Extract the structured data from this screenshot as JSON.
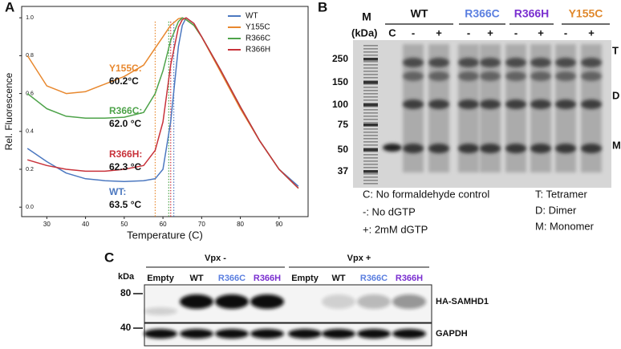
{
  "chart_data": {
    "type": "line",
    "panel": "A",
    "xlabel": "Temperature (C)",
    "ylabel": "Rel. Fluorescence",
    "x": [
      25,
      30,
      35,
      40,
      45,
      50,
      55,
      58,
      60,
      62,
      64,
      65,
      66,
      68,
      70,
      75,
      80,
      85,
      90,
      95
    ],
    "series": [
      {
        "name": "WT",
        "color": "#4c78c0",
        "values": [
          0.31,
          0.24,
          0.18,
          0.15,
          0.14,
          0.135,
          0.14,
          0.15,
          0.2,
          0.45,
          0.85,
          0.96,
          1.0,
          0.97,
          0.9,
          0.72,
          0.53,
          0.35,
          0.2,
          0.11
        ]
      },
      {
        "name": "Y155C",
        "color": "#e8882e",
        "values": [
          0.8,
          0.64,
          0.6,
          0.61,
          0.65,
          0.69,
          0.75,
          0.84,
          0.9,
          0.96,
          0.995,
          1.0,
          0.99,
          0.96,
          0.9,
          0.71,
          0.52,
          0.35,
          0.2,
          0.1
        ]
      },
      {
        "name": "R366C",
        "color": "#4ea34a",
        "values": [
          0.6,
          0.52,
          0.48,
          0.47,
          0.47,
          0.475,
          0.5,
          0.6,
          0.72,
          0.88,
          0.98,
          1.0,
          0.99,
          0.96,
          0.9,
          0.72,
          0.53,
          0.35,
          0.2,
          0.1
        ]
      },
      {
        "name": "R366H",
        "color": "#c8323a",
        "values": [
          0.25,
          0.22,
          0.2,
          0.19,
          0.19,
          0.2,
          0.22,
          0.3,
          0.45,
          0.75,
          0.95,
          0.99,
          1.0,
          0.97,
          0.9,
          0.72,
          0.53,
          0.35,
          0.2,
          0.1
        ]
      }
    ],
    "vlines": [
      {
        "x": 58,
        "color": "#e8882e"
      },
      {
        "x": 61.5,
        "color": "#4ea34a"
      },
      {
        "x": 62,
        "color": "#c8323a"
      },
      {
        "x": 62.8,
        "color": "#4c78c0"
      }
    ],
    "annotations": [
      {
        "name": "Y155C:",
        "temp": "60.2°C",
        "color": "#e8882e"
      },
      {
        "name": "R366C:",
        "temp": "62.0 °C",
        "color": "#4ea34a"
      },
      {
        "name": "R366H:",
        "temp": "62.3 °C",
        "color": "#c8323a"
      },
      {
        "name": "WT:",
        "temp": "63.5 °C",
        "color": "#4c78c0"
      }
    ],
    "xlim": [
      23.5,
      97.5
    ],
    "ylim": [
      -0.05,
      1.06
    ],
    "xticks": [
      30,
      40,
      50,
      60,
      70,
      80,
      90
    ],
    "yticks": [
      {
        "value": 0,
        "label": "0.0"
      },
      0.2,
      0.4,
      0.6,
      0.8,
      {
        "value": 1,
        "label": "1.0"
      }
    ],
    "legend": "upper right"
  },
  "panel_b": {
    "letter": "B",
    "marker_header": "M",
    "unit": "(kDa)",
    "groups": [
      {
        "name": "WT",
        "color": "#111111"
      },
      {
        "name": "R366C",
        "color": "#5b7fe0"
      },
      {
        "name": "R366H",
        "color": "#7a2fd0"
      },
      {
        "name": "Y155C",
        "color": "#e0892e"
      }
    ],
    "lanes": [
      "C",
      "-",
      "+",
      "-",
      "+",
      "-",
      "+",
      "-",
      "+"
    ],
    "markers": [
      "250",
      "150",
      "100",
      "75",
      "50",
      "37"
    ],
    "bands": [
      "T",
      "D",
      "M"
    ],
    "legend": [
      "C: No formaldehyde control",
      "-: No dGTP",
      "+: 2mM dGTP",
      "T: Tetramer",
      "D: Dimer",
      "M: Monomer"
    ]
  },
  "panel_c": {
    "letter": "C",
    "unit": "kDa",
    "groups": [
      "Vpx -",
      "Vpx +"
    ],
    "lanes": [
      {
        "name": "Empty",
        "color": "#111111"
      },
      {
        "name": "WT",
        "color": "#111111"
      },
      {
        "name": "R366C",
        "color": "#5b7fe0"
      },
      {
        "name": "R366H",
        "color": "#7a2fd0"
      },
      {
        "name": "Empty",
        "color": "#111111"
      },
      {
        "name": "WT",
        "color": "#111111"
      },
      {
        "name": "R366C",
        "color": "#5b7fe0"
      },
      {
        "name": "R366H",
        "color": "#7a2fd0"
      }
    ],
    "markers": [
      "80",
      "40"
    ],
    "blots": [
      "HA-SAMHD1",
      "GAPDH"
    ]
  }
}
